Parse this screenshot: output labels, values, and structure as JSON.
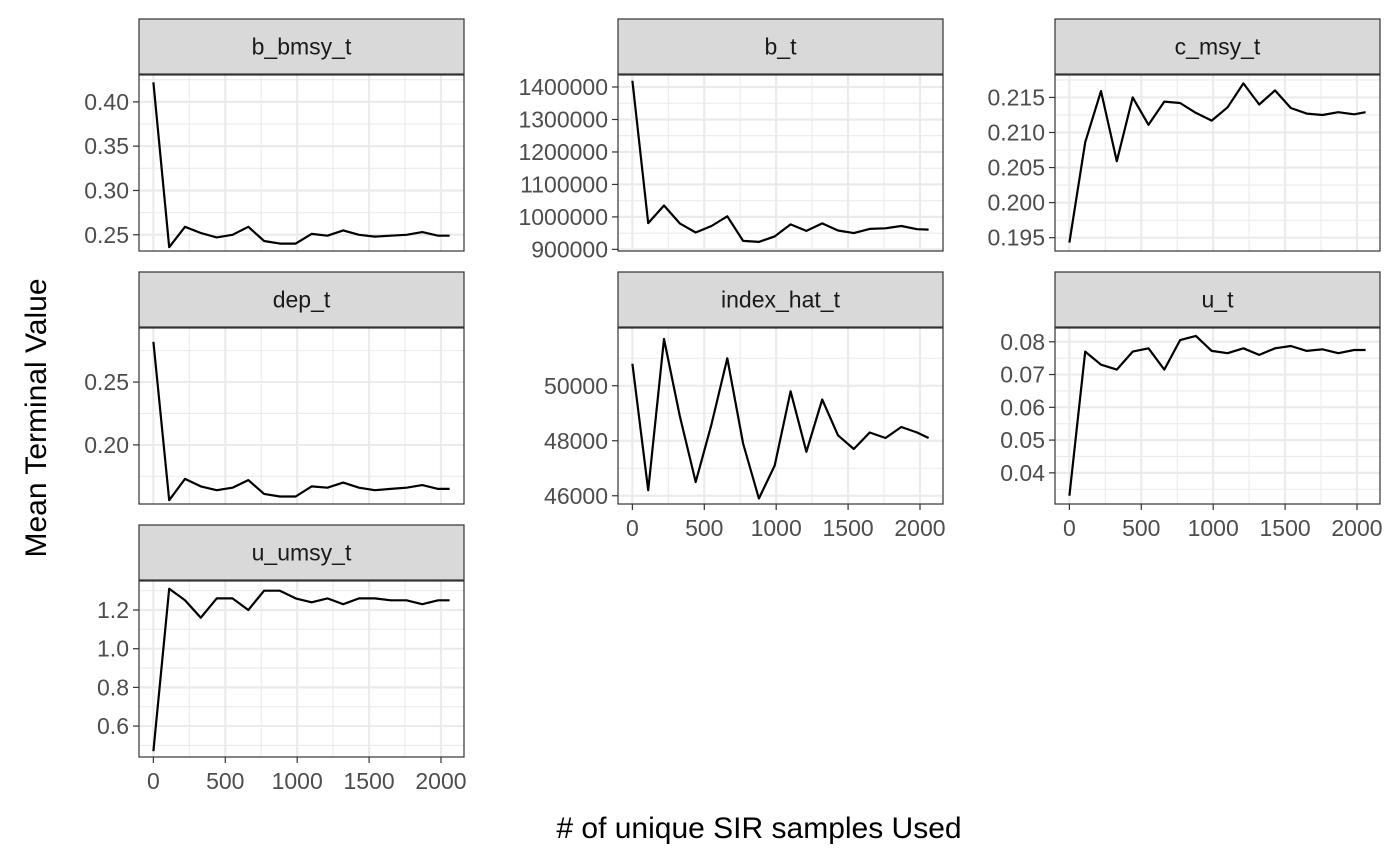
{
  "chart_data": {
    "type": "line",
    "facet_layout": "wrap 3 columns, free y scales",
    "title": "",
    "xlabel": "# of unique SIR samples Used",
    "ylabel": "Mean Terminal Value",
    "xlim": [
      -100,
      2160
    ],
    "x_ticks": [
      0,
      500,
      1000,
      1500,
      2000
    ],
    "x": [
      0,
      110,
      220,
      330,
      440,
      550,
      660,
      770,
      880,
      990,
      1100,
      1210,
      1320,
      1430,
      1540,
      1650,
      1760,
      1870,
      1980,
      2060
    ],
    "grid": true,
    "legend": "none",
    "colors": {
      "line": "#000000",
      "strip_fill": "#d9d9d9",
      "panel_border": "#333333",
      "grid": "#ebebeb"
    },
    "panels": [
      {
        "name": "b_bmsy_t",
        "ylim": [
          0.2317,
          0.4303
        ],
        "y_ticks": [
          0.25,
          0.3,
          0.35,
          0.4
        ],
        "y_tick_labels": [
          "0.25",
          "0.30",
          "0.35",
          "0.40"
        ],
        "values": [
          0.422,
          0.236,
          0.259,
          0.252,
          0.247,
          0.25,
          0.259,
          0.243,
          0.24,
          0.24,
          0.251,
          0.249,
          0.255,
          0.25,
          0.248,
          0.249,
          0.25,
          0.253,
          0.249,
          0.249
        ]
      },
      {
        "name": "b_t",
        "ylim": [
          895000,
          1437000
        ],
        "y_ticks": [
          900000,
          1000000,
          1100000,
          1200000,
          1300000,
          1400000
        ],
        "y_tick_labels": [
          "900000",
          "1000000",
          "1100000",
          "1200000",
          "1300000",
          "1400000"
        ],
        "values": [
          1419000,
          981000,
          1035000,
          980000,
          952000,
          972000,
          1002000,
          926000,
          923000,
          940000,
          977000,
          957000,
          980000,
          958000,
          950000,
          963000,
          965000,
          972000,
          962000,
          961000
        ]
      },
      {
        "name": "c_msy_t",
        "ylim": [
          0.1931,
          0.2182
        ],
        "y_ticks": [
          0.195,
          0.2,
          0.205,
          0.21,
          0.215
        ],
        "y_tick_labels": [
          "0.195",
          "0.200",
          "0.205",
          "0.210",
          "0.215"
        ],
        "values": [
          0.1943,
          0.2086,
          0.2159,
          0.2059,
          0.215,
          0.2111,
          0.2144,
          0.2142,
          0.2128,
          0.2117,
          0.2136,
          0.217,
          0.214,
          0.216,
          0.2135,
          0.2127,
          0.2125,
          0.2129,
          0.2126,
          0.2129
        ]
      },
      {
        "name": "dep_t",
        "ylim": [
          0.153,
          0.293
        ],
        "y_ticks": [
          0.2,
          0.25
        ],
        "y_tick_labels": [
          "0.20",
          "0.25"
        ],
        "values": [
          0.282,
          0.156,
          0.173,
          0.167,
          0.164,
          0.166,
          0.172,
          0.161,
          0.159,
          0.159,
          0.167,
          0.166,
          0.17,
          0.166,
          0.164,
          0.165,
          0.166,
          0.168,
          0.165,
          0.165
        ]
      },
      {
        "name": "index_hat_t",
        "ylim": [
          45700,
          52100
        ],
        "y_ticks": [
          46000,
          48000,
          50000
        ],
        "y_tick_labels": [
          "46000",
          "48000",
          "50000"
        ],
        "values": [
          50800,
          46200,
          51700,
          48900,
          46500,
          48600,
          51000,
          47900,
          45900,
          47100,
          49800,
          47600,
          49500,
          48200,
          47700,
          48300,
          48100,
          48500,
          48300,
          48100
        ]
      },
      {
        "name": "u_t",
        "ylim": [
          0.0305,
          0.0842
        ],
        "y_ticks": [
          0.04,
          0.05,
          0.06,
          0.07,
          0.08
        ],
        "y_tick_labels": [
          "0.04",
          "0.05",
          "0.06",
          "0.07",
          "0.08"
        ],
        "values": [
          0.033,
          0.077,
          0.073,
          0.0715,
          0.077,
          0.078,
          0.0715,
          0.0805,
          0.0818,
          0.0772,
          0.0765,
          0.078,
          0.076,
          0.078,
          0.0787,
          0.0772,
          0.0777,
          0.0765,
          0.0775,
          0.0775
        ]
      },
      {
        "name": "u_umsy_t",
        "ylim": [
          0.44,
          1.35
        ],
        "y_ticks": [
          0.6,
          0.8,
          1.0,
          1.2
        ],
        "y_tick_labels": [
          "0.6",
          "0.8",
          "1.0",
          "1.2"
        ],
        "values": [
          0.47,
          1.31,
          1.25,
          1.16,
          1.26,
          1.26,
          1.2,
          1.3,
          1.3,
          1.26,
          1.24,
          1.26,
          1.23,
          1.26,
          1.26,
          1.25,
          1.25,
          1.23,
          1.25,
          1.25
        ]
      }
    ]
  }
}
